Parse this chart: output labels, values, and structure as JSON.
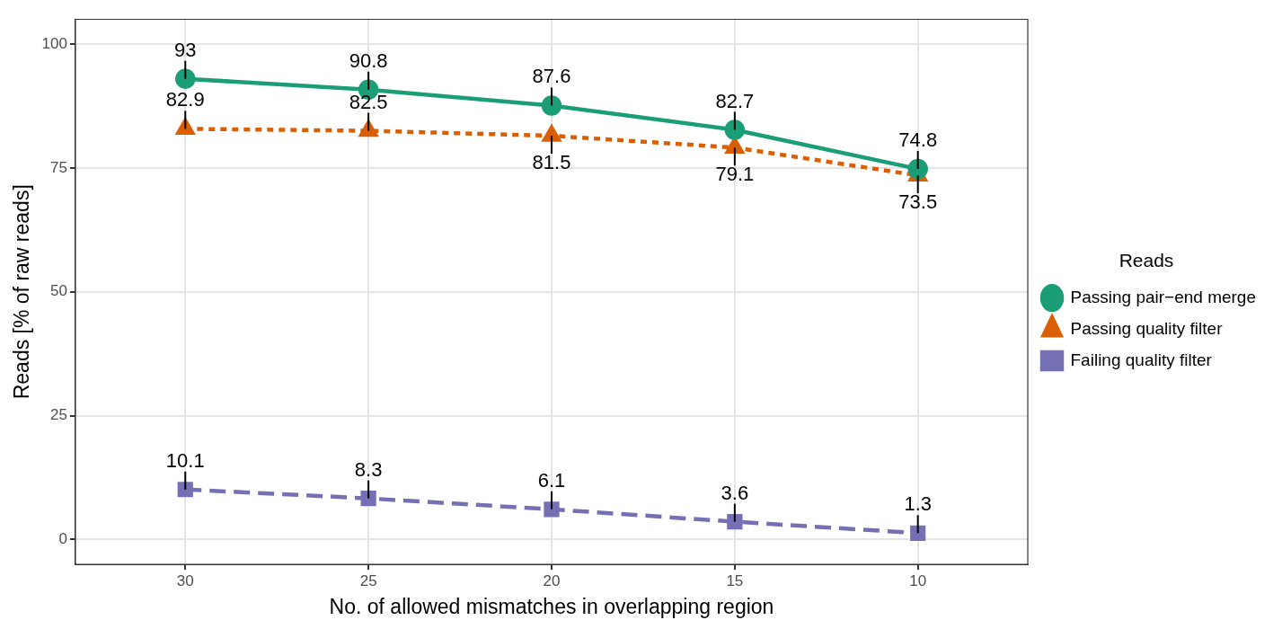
{
  "chart_data": {
    "type": "line",
    "xlabel": "No. of allowed mismatches in overlapping region",
    "ylabel": "Reads [% of raw reads]",
    "legend_title": "Reads",
    "x": [
      30,
      25,
      20,
      15,
      10
    ],
    "series": [
      {
        "name": "Passing pair−end merge",
        "color": "#1b9e77",
        "values": [
          93,
          90.8,
          87.6,
          82.7,
          74.8
        ],
        "marker": "circle",
        "line_style": "solid"
      },
      {
        "name": "Passing quality filter",
        "color": "#d95f02",
        "values": [
          82.9,
          82.5,
          81.5,
          79.1,
          73.5
        ],
        "marker": "triangle",
        "line_style": "dashed"
      },
      {
        "name": "Failing quality filter",
        "color": "#7570b3",
        "values": [
          10.1,
          8.3,
          6.1,
          3.6,
          1.3
        ],
        "marker": "square",
        "line_style": "dashed"
      }
    ],
    "xlim": [
      33,
      7
    ],
    "xticks": [
      30,
      25,
      20,
      15,
      10
    ],
    "ylim": [
      -5,
      105
    ],
    "yticks": [
      0,
      25,
      50,
      75,
      100
    ],
    "grid": true,
    "legend": "right",
    "data_labels": true
  }
}
